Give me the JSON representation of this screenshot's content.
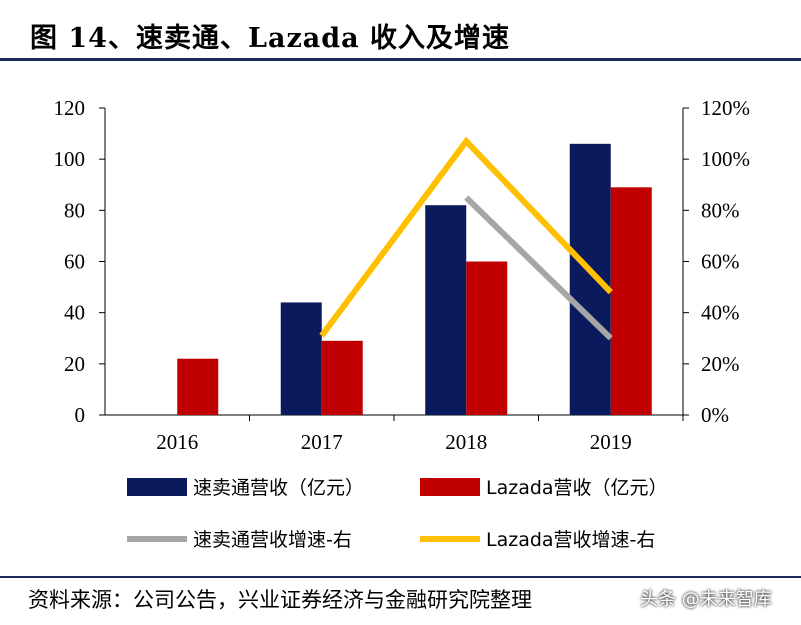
{
  "title": "图 14、速卖通、Lazada 收入及增速",
  "source": "资料来源：公司公告，兴业证券经济与金融研究院整理",
  "watermark": "头条 @未来智库",
  "colors": {
    "navy": "#0b1a5c",
    "red": "#c00000",
    "grey": "#a6a6a6",
    "yellow": "#ffc000",
    "rule": "#1f2a5c"
  },
  "chart_data": {
    "type": "bar",
    "title": "速卖通、Lazada 收入及增速",
    "categories": [
      "2016",
      "2017",
      "2018",
      "2019"
    ],
    "ylim": [
      0,
      120
    ],
    "yticks": [
      0,
      20,
      40,
      60,
      80,
      100,
      120
    ],
    "y2lim": [
      0,
      1.2
    ],
    "y2ticks": [
      "0%",
      "20%",
      "40%",
      "60%",
      "80%",
      "100%",
      "120%"
    ],
    "series": [
      {
        "name": "速卖通营收（亿元）",
        "type": "bar",
        "axis": "left",
        "color": "#0b1a5c",
        "values": [
          null,
          44,
          82,
          106
        ]
      },
      {
        "name": "Lazada营收（亿元）",
        "type": "bar",
        "axis": "left",
        "color": "#c00000",
        "values": [
          22,
          29,
          60,
          89
        ]
      },
      {
        "name": "速卖通营收增速-右",
        "type": "line",
        "axis": "right",
        "color": "#a6a6a6",
        "values": [
          null,
          null,
          0.85,
          0.3
        ]
      },
      {
        "name": "Lazada营收增速-右",
        "type": "line",
        "axis": "right",
        "color": "#ffc000",
        "values": [
          null,
          0.31,
          1.07,
          0.48
        ]
      }
    ]
  }
}
